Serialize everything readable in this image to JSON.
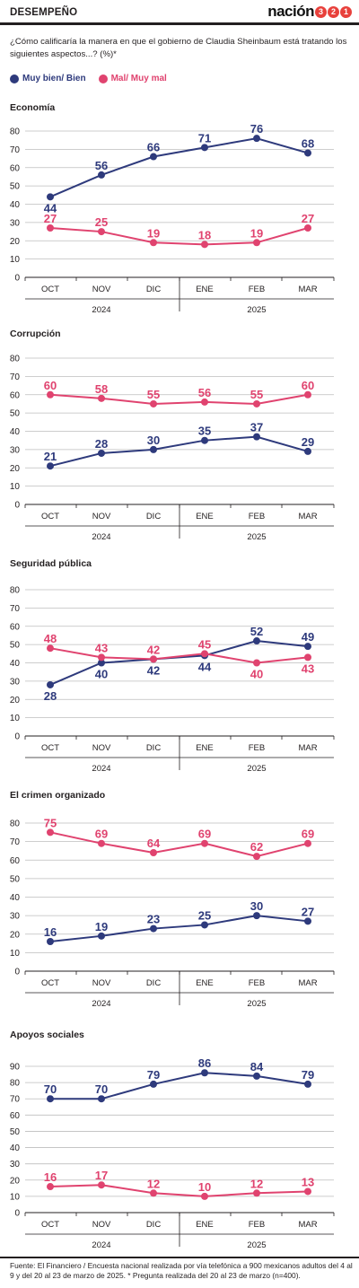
{
  "header": {
    "section": "DESEMPEÑO",
    "brand_word": "nación",
    "brand_digits": [
      "3",
      "2",
      "1"
    ],
    "brand_colors": [
      "#e8413c",
      "#e8413c",
      "#e8413c"
    ]
  },
  "question": "¿Cómo calificaría la manera en que el gobierno de Claudia Sheinbaum está tratando los siguientes aspectos...? (%)*",
  "legend": [
    {
      "label": "Muy bien/ Bien",
      "color": "#2e3a7c"
    },
    {
      "label": "Mal/ Muy mal",
      "color": "#e0436f"
    }
  ],
  "source": "Fuente: El Financiero / Encuesta nacional realizada por vía telefónica a 900 mexicanos adultos del 4 al 9 y del 20 al 23 de marzo de 2025. * Pregunta realizada del 20 al 23 de marzo (n=400).",
  "chart_data": [
    {
      "type": "line",
      "title": "Economía",
      "categories": [
        "OCT",
        "NOV",
        "DIC",
        "ENE",
        "FEB",
        "MAR"
      ],
      "years": [
        "2024",
        "2025"
      ],
      "yticks": [
        0,
        10,
        20,
        30,
        40,
        50,
        60,
        70,
        80
      ],
      "ylim": [
        0,
        80
      ],
      "series": [
        {
          "name": "Muy bien/ Bien",
          "color": "#2e3a7c",
          "values": [
            44,
            56,
            66,
            71,
            76,
            68
          ],
          "label_pos": [
            "below",
            "above",
            "above",
            "above",
            "above",
            "above"
          ]
        },
        {
          "name": "Mal/ Muy mal",
          "color": "#e0436f",
          "values": [
            27,
            25,
            19,
            18,
            19,
            27
          ],
          "label_pos": [
            "above",
            "above",
            "above",
            "above",
            "above",
            "above"
          ]
        }
      ]
    },
    {
      "type": "line",
      "title": "Corrupción",
      "categories": [
        "OCT",
        "NOV",
        "DIC",
        "ENE",
        "FEB",
        "MAR"
      ],
      "years": [
        "2024",
        "2025"
      ],
      "yticks": [
        0,
        10,
        20,
        30,
        40,
        50,
        60,
        70,
        80
      ],
      "ylim": [
        0,
        80
      ],
      "series": [
        {
          "name": "Muy bien/ Bien",
          "color": "#2e3a7c",
          "values": [
            21,
            28,
            30,
            35,
            37,
            29
          ],
          "label_pos": [
            "above",
            "above",
            "above",
            "above",
            "above",
            "above"
          ]
        },
        {
          "name": "Mal/ Muy mal",
          "color": "#e0436f",
          "values": [
            60,
            58,
            55,
            56,
            55,
            60
          ],
          "label_pos": [
            "above",
            "above",
            "above",
            "above",
            "above",
            "above"
          ]
        }
      ]
    },
    {
      "type": "line",
      "title": "Seguridad pública",
      "categories": [
        "OCT",
        "NOV",
        "DIC",
        "ENE",
        "FEB",
        "MAR"
      ],
      "years": [
        "2024",
        "2025"
      ],
      "yticks": [
        0,
        10,
        20,
        30,
        40,
        50,
        60,
        70,
        80
      ],
      "ylim": [
        0,
        80
      ],
      "series": [
        {
          "name": "Muy bien/ Bien",
          "color": "#2e3a7c",
          "values": [
            28,
            40,
            42,
            44,
            52,
            49
          ],
          "label_pos": [
            "below",
            "below",
            "below",
            "below",
            "above",
            "above"
          ]
        },
        {
          "name": "Mal/ Muy mal",
          "color": "#e0436f",
          "values": [
            48,
            43,
            42,
            45,
            40,
            43
          ],
          "label_pos": [
            "above",
            "above",
            "above",
            "above",
            "below",
            "below"
          ]
        }
      ]
    },
    {
      "type": "line",
      "title": "El crimen organizado",
      "categories": [
        "OCT",
        "NOV",
        "DIC",
        "ENE",
        "FEB",
        "MAR"
      ],
      "years": [
        "2024",
        "2025"
      ],
      "yticks": [
        0,
        10,
        20,
        30,
        40,
        50,
        60,
        70,
        80
      ],
      "ylim": [
        0,
        80
      ],
      "series": [
        {
          "name": "Muy bien/ Bien",
          "color": "#2e3a7c",
          "values": [
            16,
            19,
            23,
            25,
            30,
            27
          ],
          "label_pos": [
            "above",
            "above",
            "above",
            "above",
            "above",
            "above"
          ]
        },
        {
          "name": "Mal/ Muy mal",
          "color": "#e0436f",
          "values": [
            75,
            69,
            64,
            69,
            62,
            69
          ],
          "label_pos": [
            "above",
            "above",
            "above",
            "above",
            "above",
            "above"
          ]
        }
      ]
    },
    {
      "type": "line",
      "title": "Apoyos sociales",
      "categories": [
        "OCT",
        "NOV",
        "DIC",
        "ENE",
        "FEB",
        "MAR"
      ],
      "years": [
        "2024",
        "2025"
      ],
      "yticks": [
        0,
        10,
        20,
        30,
        40,
        50,
        60,
        70,
        80,
        90
      ],
      "ylim": [
        0,
        90
      ],
      "series": [
        {
          "name": "Muy bien/ Bien",
          "color": "#2e3a7c",
          "values": [
            70,
            70,
            79,
            86,
            84,
            79
          ],
          "label_pos": [
            "above",
            "above",
            "above",
            "above",
            "above",
            "above"
          ]
        },
        {
          "name": "Mal/ Muy mal",
          "color": "#e0436f",
          "values": [
            16,
            17,
            12,
            10,
            12,
            13
          ],
          "label_pos": [
            "above",
            "above",
            "above",
            "above",
            "above",
            "above"
          ]
        }
      ]
    }
  ]
}
